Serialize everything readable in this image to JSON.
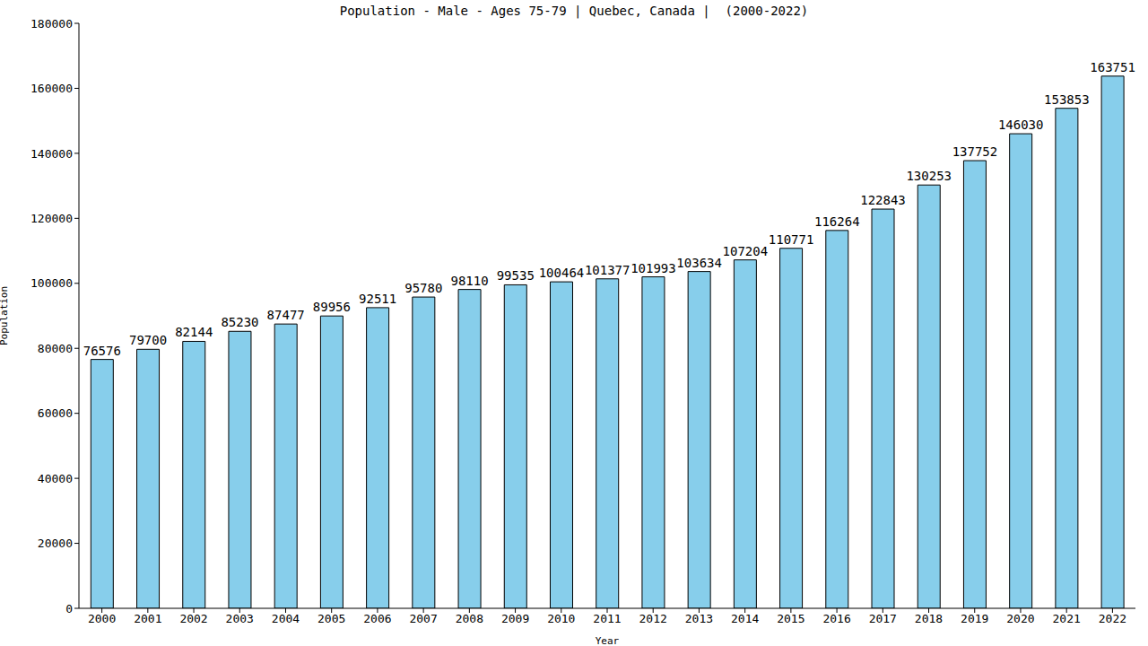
{
  "chart_data": {
    "type": "bar",
    "title": "Population - Male - Ages 75-79 | Quebec, Canada |  (2000-2022)",
    "x_label": "Year",
    "y_label": "Population",
    "categories": [
      "2000",
      "2001",
      "2002",
      "2003",
      "2004",
      "2005",
      "2006",
      "2007",
      "2008",
      "2009",
      "2010",
      "2011",
      "2012",
      "2013",
      "2014",
      "2015",
      "2016",
      "2017",
      "2018",
      "2019",
      "2020",
      "2021",
      "2022"
    ],
    "values": [
      76576,
      79700,
      82144,
      85230,
      87477,
      89956,
      92511,
      95780,
      98110,
      99535,
      100464,
      101377,
      101993,
      103634,
      107204,
      110771,
      116264,
      122843,
      130253,
      137752,
      146030,
      153853,
      163751
    ],
    "color": "#87ceeb",
    "ylim": [
      0,
      180000
    ],
    "yticks": [
      0,
      20000,
      40000,
      60000,
      80000,
      100000,
      120000,
      140000,
      160000,
      180000
    ],
    "grid": false,
    "data_labels": true
  }
}
